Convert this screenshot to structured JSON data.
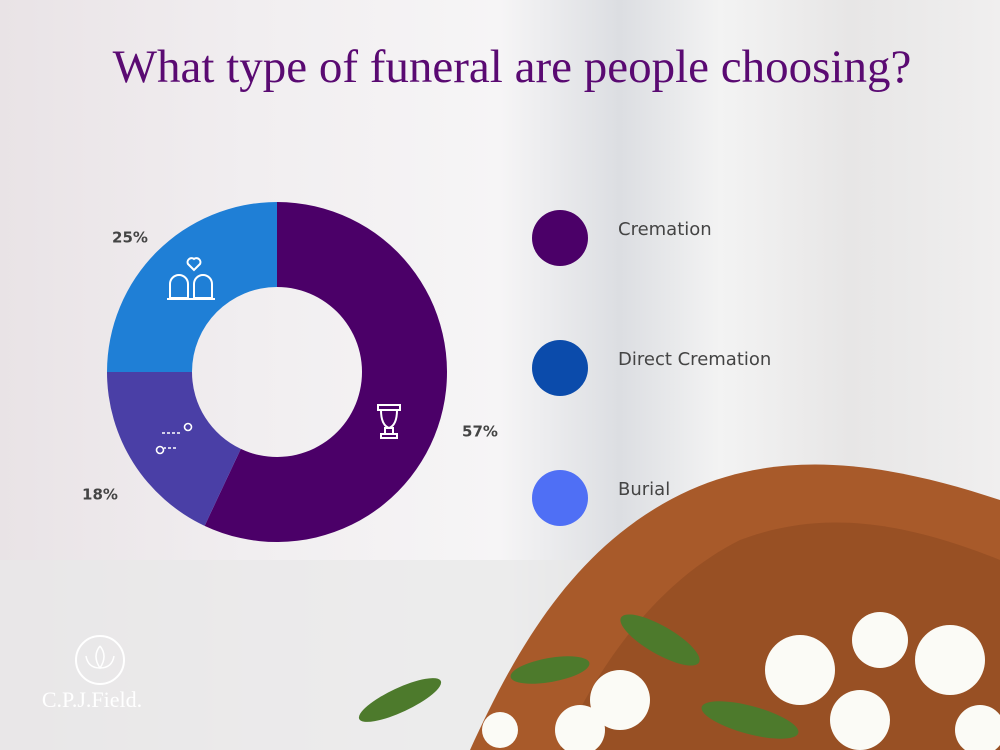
{
  "chart_data": {
    "type": "donut",
    "title": "What type of funeral are people choosing?",
    "categories": [
      "Cremation",
      "Direct Cremation",
      "Burial"
    ],
    "values": [
      57,
      18,
      25
    ],
    "value_labels": [
      "57%",
      "18%",
      "25%"
    ],
    "colors": [
      "#4b0068",
      "#4a3fa6",
      "#1f7fd6"
    ],
    "legend_colors": [
      "#4b0068",
      "#0b4bab",
      "#4f6ff5"
    ],
    "legend": "right"
  },
  "brand": "C.P.J.Field."
}
